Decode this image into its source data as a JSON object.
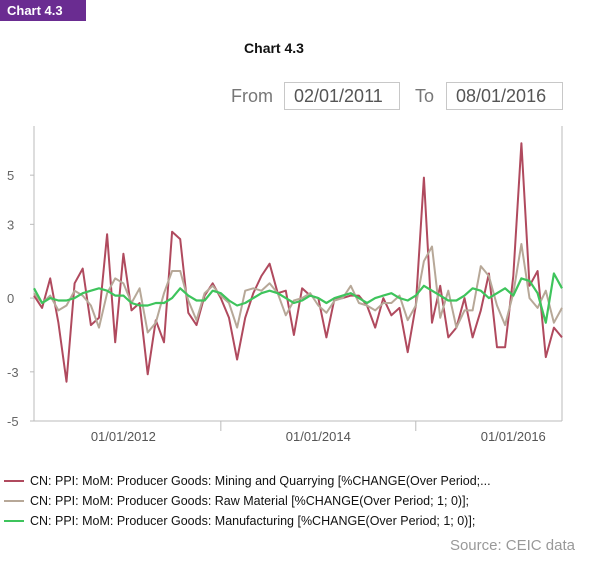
{
  "badge": "Chart 4.3",
  "title": "Chart 4.3",
  "range": {
    "from_label": "From",
    "from_value": "02/01/2011",
    "to_label": "To",
    "to_value": "08/01/2016"
  },
  "source": "Source: CEIC data",
  "chart_data": {
    "type": "line",
    "title": "Chart 4.3",
    "ylim": [
      -5,
      7
    ],
    "yticks": [
      5,
      3,
      0,
      -3,
      -5
    ],
    "xticks": [
      "01/01/2012",
      "01/01/2014",
      "01/01/2016"
    ],
    "grid": false,
    "legend_position": "bottom",
    "x_start": "2011-02",
    "x_end": "2016-08",
    "series": [
      {
        "name": "CN: PPI: MoM: Producer Goods: Mining and Quarrying [%CHANGE(Over Period;...",
        "color": "#b04a5e",
        "values": [
          0.1,
          -0.4,
          0.8,
          -1.0,
          -3.4,
          0.6,
          1.2,
          -1.1,
          -0.8,
          2.6,
          -1.8,
          1.8,
          -0.5,
          -0.2,
          -3.1,
          -0.9,
          -1.8,
          2.7,
          2.4,
          -0.6,
          -1.1,
          0.1,
          0.6,
          0.0,
          -0.8,
          -2.5,
          -0.8,
          0.2,
          0.9,
          1.4,
          0.2,
          0.3,
          -1.5,
          0.4,
          0.1,
          0.0,
          -1.6,
          0.0,
          0.0,
          0.1,
          0.1,
          -0.3,
          -1.2,
          0.0,
          -0.7,
          -0.4,
          -2.2,
          -0.3,
          4.9,
          -1.0,
          0.5,
          -1.6,
          -1.2,
          0.0,
          -1.6,
          -0.5,
          1.0,
          -2.0,
          -2.0,
          0.9,
          6.3,
          0.5,
          1.1,
          -2.4,
          -1.2,
          -1.6
        ]
      },
      {
        "name": "CN: PPI: MoM: Producer Goods: Raw Material [%CHANGE(Over Period; 1; 0)];",
        "color": "#b7a898",
        "values": [
          0.2,
          -0.2,
          0.1,
          -0.5,
          -0.3,
          0.3,
          0.1,
          -0.3,
          -1.2,
          0.2,
          0.8,
          0.6,
          -0.2,
          0.4,
          -1.4,
          -1.0,
          0.2,
          1.1,
          1.1,
          -0.1,
          -0.9,
          0.2,
          0.5,
          0.1,
          -0.2,
          -1.2,
          0.3,
          0.4,
          0.3,
          0.6,
          0.2,
          -0.7,
          -0.1,
          0.0,
          0.2,
          -0.3,
          -0.6,
          -0.1,
          0.0,
          0.5,
          -0.2,
          -0.3,
          -0.5,
          -0.2,
          -0.2,
          0.1,
          -0.9,
          -0.3,
          1.5,
          2.1,
          -0.8,
          0.3,
          -1.2,
          -0.5,
          -0.5,
          1.3,
          0.9,
          -0.3,
          -1.1,
          0.2,
          2.2,
          0.0,
          -0.4,
          0.3,
          -1.0,
          -0.4
        ]
      },
      {
        "name": "CN: PPI: MoM: Producer Goods: Manufacturing [%CHANGE(Over Period; 1; 0)];",
        "color": "#3ec45c",
        "values": [
          0.4,
          -0.2,
          0.0,
          -0.1,
          -0.1,
          0.0,
          0.2,
          0.3,
          0.4,
          0.3,
          0.1,
          0.1,
          -0.2,
          -0.3,
          -0.3,
          -0.2,
          -0.2,
          0.0,
          0.4,
          0.1,
          -0.1,
          -0.1,
          0.3,
          0.2,
          -0.1,
          -0.3,
          -0.2,
          0.0,
          0.2,
          0.3,
          0.2,
          0.0,
          -0.2,
          -0.1,
          0.1,
          0.0,
          -0.2,
          0.0,
          0.1,
          0.2,
          0.0,
          -0.2,
          0.0,
          0.1,
          0.2,
          0.0,
          -0.1,
          0.1,
          0.5,
          0.3,
          0.1,
          -0.1,
          -0.1,
          0.1,
          0.4,
          0.3,
          0.0,
          0.2,
          0.4,
          0.1,
          0.8,
          0.7,
          0.2,
          -1.0,
          1.0,
          0.4
        ]
      }
    ]
  }
}
